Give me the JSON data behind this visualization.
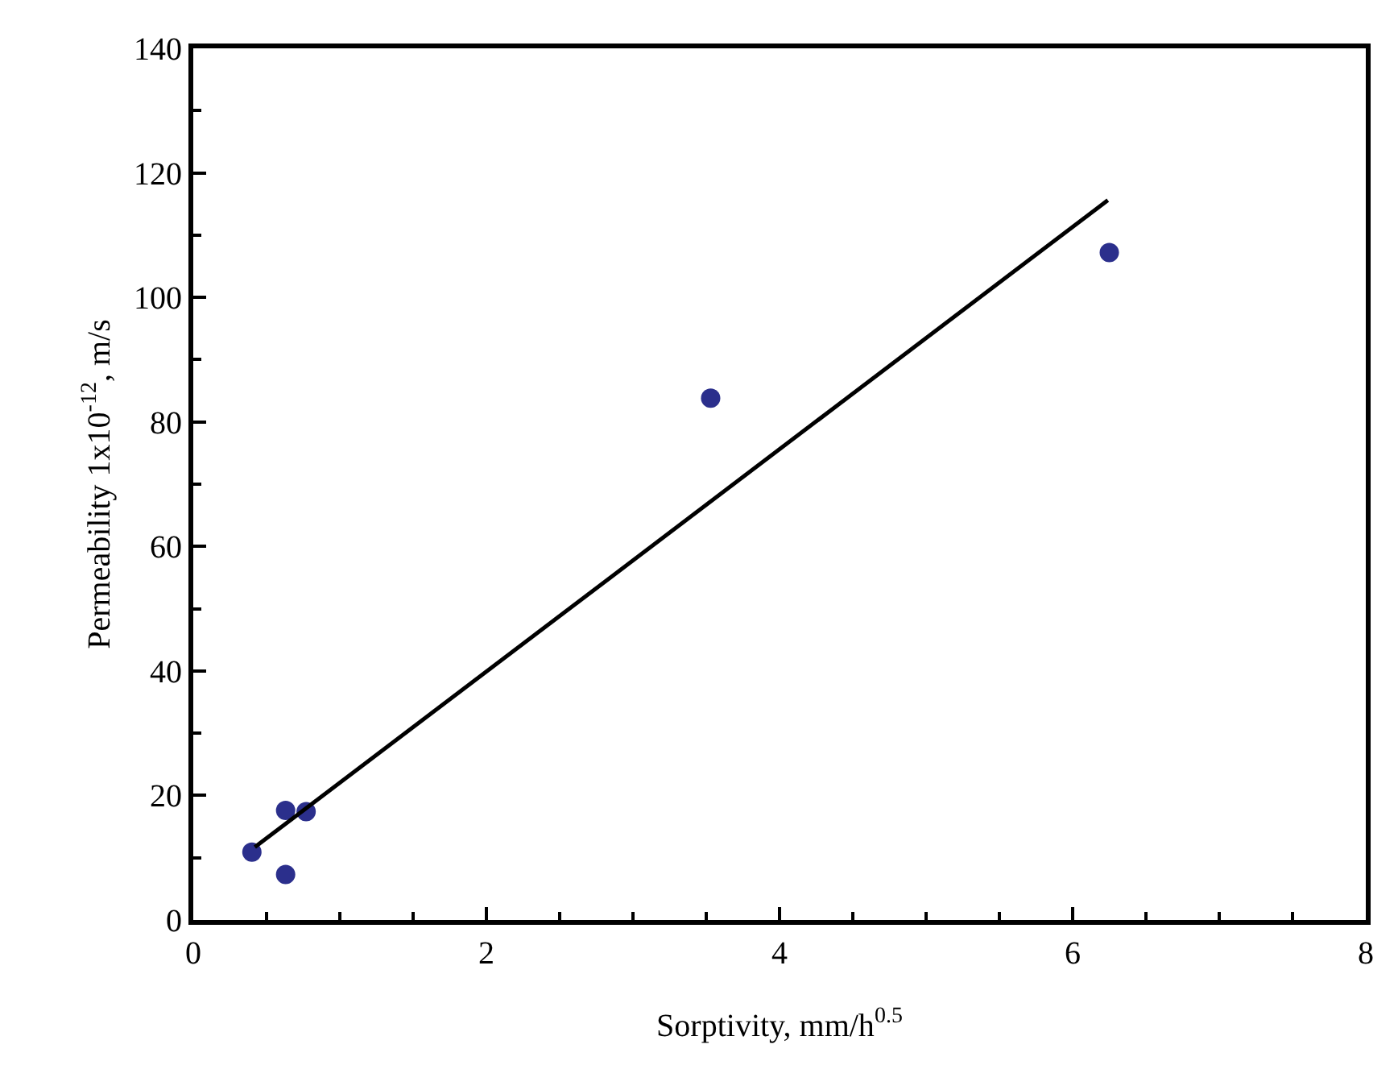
{
  "chart_data": {
    "type": "scatter",
    "xlabel": "Sorptivity, mm/h$^{0.5}$",
    "ylabel": "Permeability 1x10$^{-12}$, m/s",
    "series": [
      {
        "color": "#2b2f8c",
        "marker": "circle",
        "x": [
          0.4,
          0.63,
          0.77,
          0.63,
          3.53,
          6.25
        ],
        "values": [
          10.9,
          17.6,
          17.4,
          7.3,
          83.8,
          107.2
        ]
      },
      {
        "type": "line",
        "marker": "none",
        "color": "#000000",
        "x": [
          0.42,
          6.24
        ],
        "values": [
          11.7,
          115.6
        ]
      }
    ],
    "xlim": [
      0,
      8
    ],
    "xticks": [
      0,
      2,
      4,
      6,
      8
    ],
    "ylim": [
      0,
      140
    ],
    "yticks": [
      0,
      20,
      40,
      60,
      80,
      100,
      120,
      140
    ],
    "grid": false,
    "line_style": "solid"
  }
}
